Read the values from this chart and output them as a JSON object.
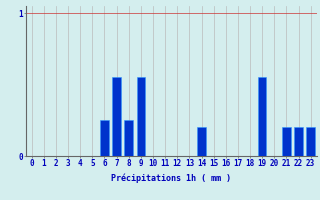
{
  "title": "",
  "xlabel": "Précipitations 1h ( mm )",
  "ylabel": "",
  "hours": [
    0,
    1,
    2,
    3,
    4,
    5,
    6,
    7,
    8,
    9,
    10,
    11,
    12,
    13,
    14,
    15,
    16,
    17,
    18,
    19,
    20,
    21,
    22,
    23
  ],
  "values": [
    0,
    0,
    0,
    0,
    0,
    0,
    0.25,
    0.55,
    0.25,
    0.55,
    0,
    0,
    0,
    0,
    0.2,
    0,
    0,
    0,
    0,
    0.55,
    0,
    0.2,
    0.2,
    0.2
  ],
  "ylim": [
    0,
    1.05
  ],
  "yticks": [
    0,
    1
  ],
  "bar_color": "#0033cc",
  "bar_edge_color": "#3399ff",
  "background_color": "#d4eeee",
  "grid_color_v": "#bbbbbb",
  "grid_color_h": "#cc3333",
  "axis_color": "#666666",
  "text_color": "#0000bb",
  "xlabel_fontsize": 6.0,
  "tick_fontsize": 5.5,
  "figwidth": 3.2,
  "figheight": 2.0,
  "dpi": 100
}
